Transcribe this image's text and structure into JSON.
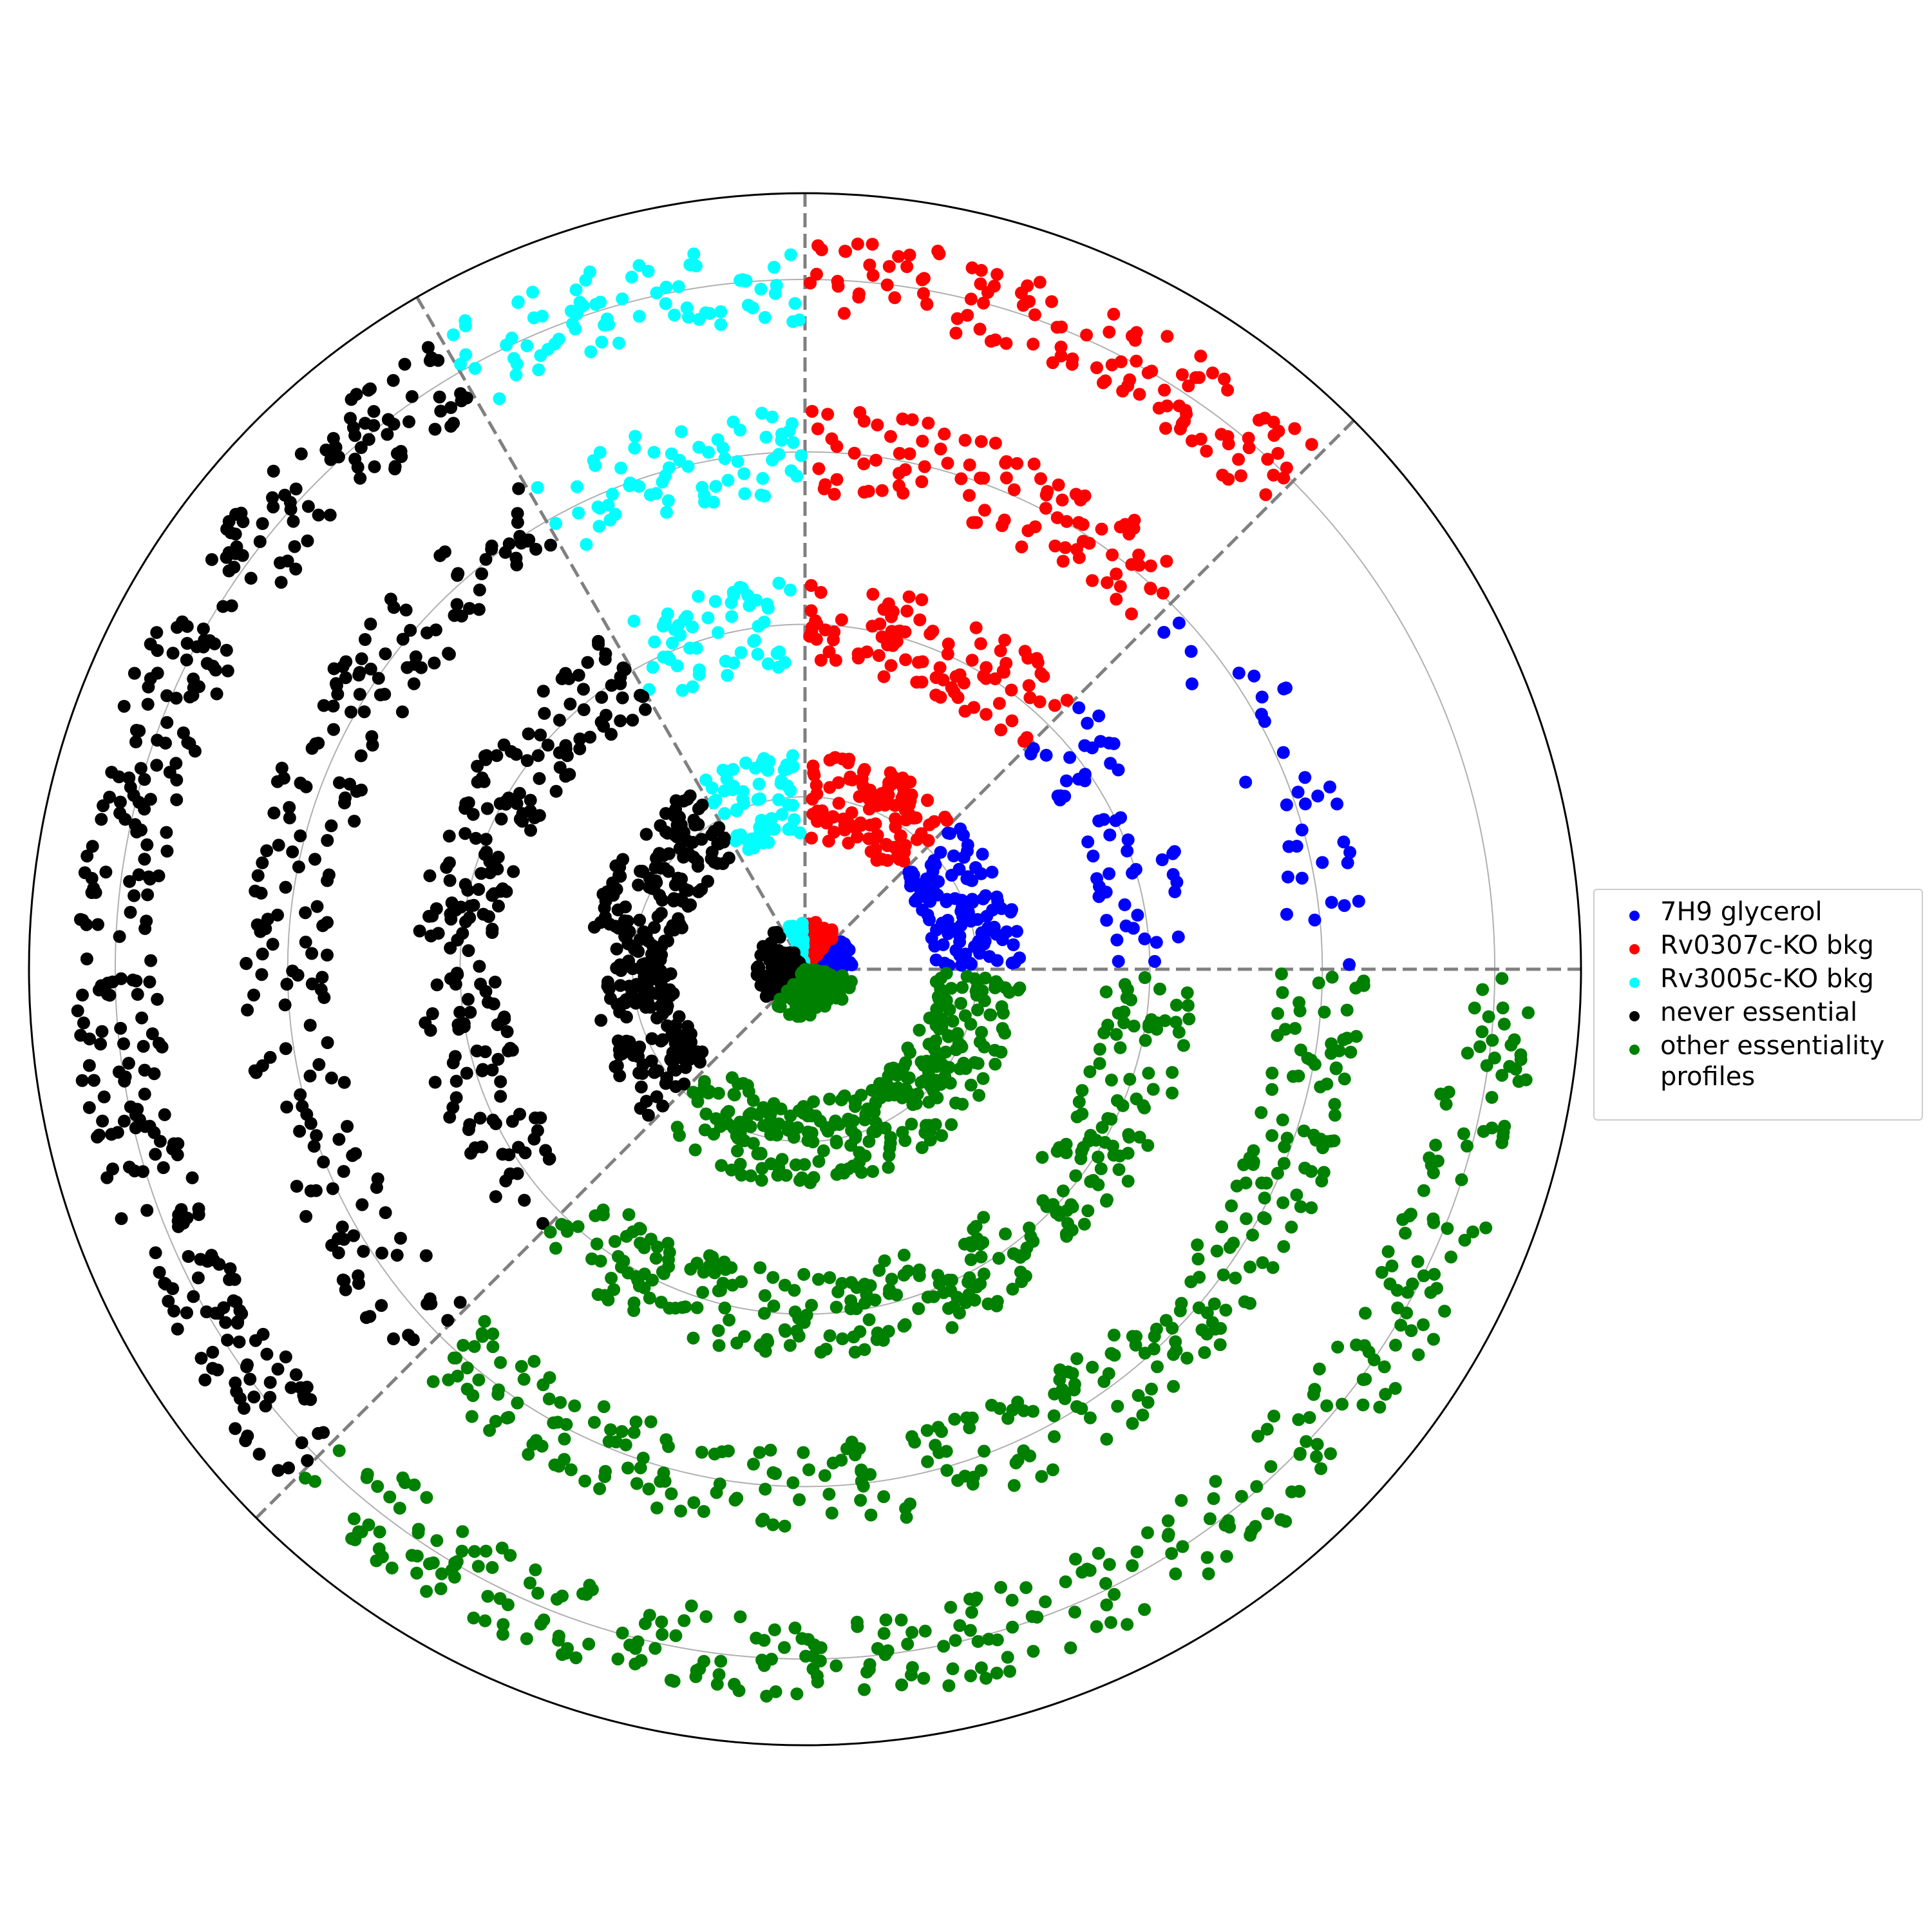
{
  "chart_data": {
    "type": "scatter",
    "coordinate_system": "polar",
    "radial_rings": [
      1,
      2,
      3,
      4
    ],
    "grid": true,
    "sector_divider_angles_deg": [
      0,
      45,
      90,
      120,
      225
    ],
    "legend_position": "right",
    "series": [
      {
        "name": "7H9 glycerol",
        "color": "#0000ff",
        "angle_range_deg": [
          0,
          45
        ],
        "bands": [
          {
            "r": [
              0,
              0.28
            ],
            "n": 70
          },
          {
            "r": [
              0.75,
              1.25
            ],
            "n": 110
          },
          {
            "r": [
              1.75,
              2.25
            ],
            "n": 55
          },
          {
            "r": [
              2.75,
              3.25
            ],
            "n": 35
          }
        ]
      },
      {
        "name": "Rv0307c-KO bkg",
        "color": "#ff0000",
        "angle_range_deg": [
          45,
          90
        ],
        "bands": [
          {
            "r": [
              0,
              0.28
            ],
            "n": 70
          },
          {
            "r": [
              0.75,
              1.25
            ],
            "n": 110
          },
          {
            "r": [
              1.75,
              2.25
            ],
            "n": 95
          },
          {
            "r": [
              2.75,
              3.25
            ],
            "n": 100
          },
          {
            "r": [
              3.75,
              4.25
            ],
            "n": 120
          }
        ]
      },
      {
        "name": "Rv3005c-KO bkg",
        "color": "#00ffff",
        "angle_range_deg": [
          90,
          120
        ],
        "bands": [
          {
            "r": [
              0,
              0.28
            ],
            "n": 45
          },
          {
            "r": [
              0.75,
              1.25
            ],
            "n": 65
          },
          {
            "r": [
              1.75,
              2.25
            ],
            "n": 55
          },
          {
            "r": [
              2.75,
              3.25
            ],
            "n": 65
          },
          {
            "r": [
              3.75,
              4.25
            ],
            "n": 75
          }
        ]
      },
      {
        "name": "never essential",
        "color": "#000000",
        "angle_range_deg": [
          120,
          225
        ],
        "bands": [
          {
            "r": [
              0,
              0.28
            ],
            "n": 95
          },
          {
            "r": [
              0.75,
              1.25
            ],
            "n": 260
          },
          {
            "r": [
              1.75,
              2.25
            ],
            "n": 200
          },
          {
            "r": [
              2.75,
              3.25
            ],
            "n": 190
          },
          {
            "r": [
              3.75,
              4.25
            ],
            "n": 330
          }
        ]
      },
      {
        "name": "other essentiality\nprofiles",
        "color": "#008000",
        "angle_range_deg": [
          225,
          360
        ],
        "bands": [
          {
            "r": [
              0,
              0.28
            ],
            "n": 130
          },
          {
            "r": [
              0.75,
              1.25
            ],
            "n": 290
          },
          {
            "r": [
              1.75,
              2.25
            ],
            "n": 290
          },
          {
            "r": [
              2.75,
              3.25
            ],
            "n": 300
          },
          {
            "r": [
              3.75,
              4.25
            ],
            "n": 320
          }
        ]
      }
    ]
  }
}
